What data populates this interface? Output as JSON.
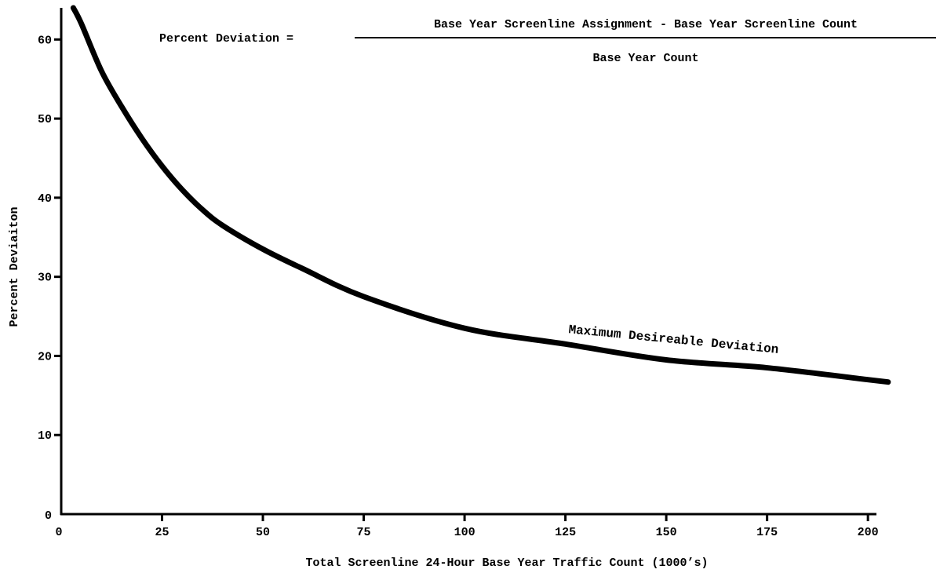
{
  "chart_data": {
    "type": "line",
    "title": "",
    "xlabel": "Total Screenline 24-Hour Base Year Traffic Count (1000’s)",
    "ylabel": "Percent Deviaiton",
    "xlim": [
      0,
      206
    ],
    "ylim": [
      0,
      64
    ],
    "xticks": [
      0,
      25,
      50,
      75,
      100,
      125,
      150,
      175,
      200
    ],
    "yticks": [
      0,
      10,
      20,
      30,
      40,
      50,
      60
    ],
    "grid": false,
    "series": [
      {
        "name": "Maximum Desireable Deviation",
        "x": [
          3,
          5,
          10,
          15,
          20,
          25,
          30,
          35,
          40,
          50,
          60,
          75,
          100,
          125,
          150,
          175,
          200,
          205
        ],
        "y": [
          64,
          62,
          56,
          51.5,
          47.5,
          44,
          41,
          38.5,
          36.5,
          33.5,
          31,
          27.5,
          23.5,
          21.5,
          19.5,
          18.5,
          17,
          16.7
        ]
      }
    ],
    "annotations": {
      "formula": {
        "lhs": "Percent Deviation =",
        "numerator": "Base Year Screenline Assignment - Base Year Screenline Count",
        "denominator": "Base Year Count"
      }
    },
    "colors": {
      "line": "#000000",
      "axis": "#000000",
      "background": "#ffffff"
    }
  }
}
